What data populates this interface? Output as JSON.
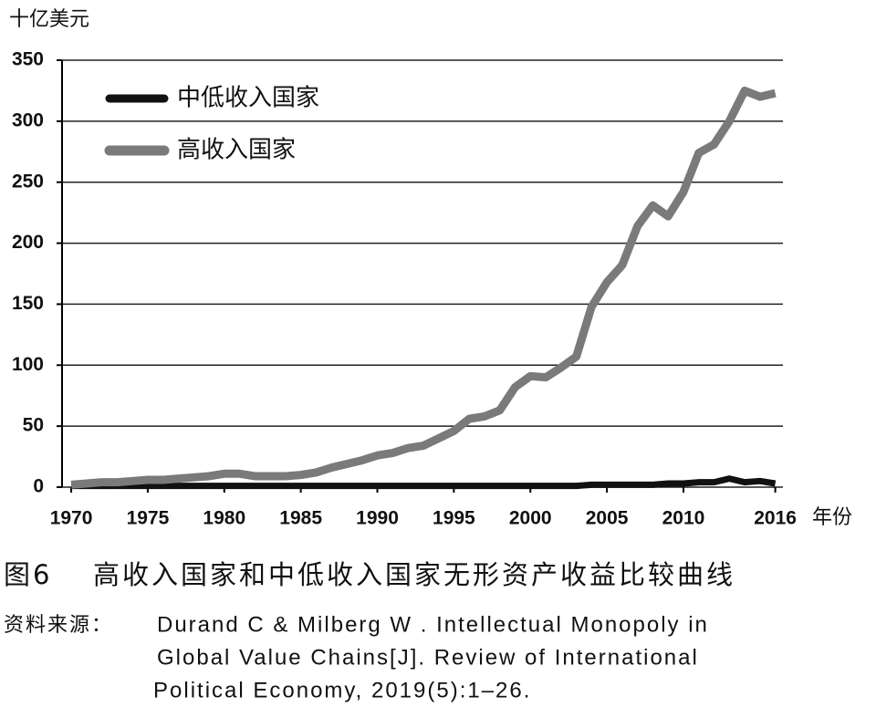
{
  "chart_data": {
    "type": "line",
    "y_label": "十亿美元",
    "x_label": "年份",
    "x": [
      1970,
      1971,
      1972,
      1973,
      1974,
      1975,
      1976,
      1977,
      1978,
      1979,
      1980,
      1981,
      1982,
      1983,
      1984,
      1985,
      1986,
      1987,
      1988,
      1989,
      1990,
      1991,
      1992,
      1993,
      1994,
      1995,
      1996,
      1997,
      1998,
      1999,
      2000,
      2001,
      2002,
      2003,
      2004,
      2005,
      2006,
      2007,
      2008,
      2009,
      2010,
      2011,
      2012,
      2013,
      2014,
      2015,
      2016
    ],
    "series": [
      {
        "name": "中低收入国家",
        "color": "#111111",
        "values": [
          1,
          1,
          1,
          1,
          1,
          1,
          1,
          1,
          1,
          1,
          1,
          1,
          1,
          1,
          1,
          1,
          1,
          1,
          1,
          1,
          1,
          1,
          1,
          1,
          1,
          1,
          1,
          1,
          1,
          1,
          1,
          1,
          1,
          1,
          2,
          2,
          2,
          2,
          2,
          3,
          3,
          4,
          4,
          7,
          4,
          5,
          3
        ]
      },
      {
        "name": "高收入国家",
        "color": "#7a7a7a",
        "values": [
          2,
          3,
          4,
          4,
          5,
          6,
          6,
          7,
          8,
          9,
          11,
          11,
          9,
          9,
          9,
          10,
          12,
          16,
          19,
          22,
          26,
          28,
          32,
          34,
          40,
          46,
          56,
          58,
          63,
          82,
          91,
          90,
          98,
          107,
          148,
          168,
          182,
          214,
          231,
          222,
          242,
          274,
          281,
          300,
          325,
          320,
          323
        ]
      }
    ],
    "xlim": [
      1969.4,
      2016.5
    ],
    "xticks": [
      1970,
      1975,
      1980,
      1985,
      1990,
      1995,
      2000,
      2005,
      2010,
      2016
    ],
    "ylim": [
      0,
      350
    ],
    "yticks": [
      0,
      50,
      100,
      150,
      200,
      250,
      300,
      350
    ],
    "grid": true,
    "legend": "upper left"
  },
  "caption": {
    "label": "图6",
    "title": "高收入国家和中低收入国家无形资产收益比较曲线"
  },
  "source": {
    "label": "资料来源：",
    "lines": [
      "Durand C & Milberg W . Intellectual Monopoly in",
      "Global Value Chains[J]. Review of International",
      "Political Economy, 2019(5):1–26."
    ]
  }
}
